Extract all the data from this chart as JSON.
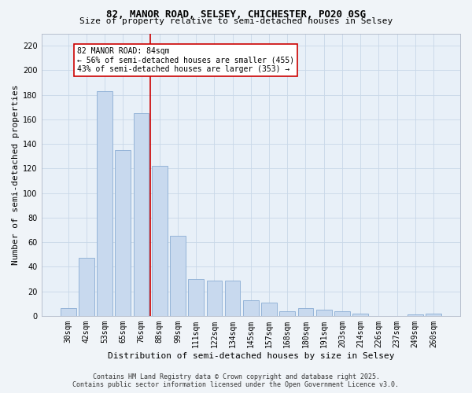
{
  "title1": "82, MANOR ROAD, SELSEY, CHICHESTER, PO20 0SG",
  "title2": "Size of property relative to semi-detached houses in Selsey",
  "xlabel": "Distribution of semi-detached houses by size in Selsey",
  "ylabel": "Number of semi-detached properties",
  "categories": [
    "30sqm",
    "42sqm",
    "53sqm",
    "65sqm",
    "76sqm",
    "88sqm",
    "99sqm",
    "111sqm",
    "122sqm",
    "134sqm",
    "145sqm",
    "157sqm",
    "168sqm",
    "180sqm",
    "191sqm",
    "203sqm",
    "214sqm",
    "226sqm",
    "237sqm",
    "249sqm",
    "260sqm"
  ],
  "values": [
    6,
    47,
    183,
    135,
    165,
    122,
    65,
    30,
    29,
    29,
    13,
    11,
    4,
    6,
    5,
    4,
    2,
    0,
    0,
    1,
    2
  ],
  "bar_color": "#c8d9ee",
  "bar_edge_color": "#8aadd4",
  "bar_linewidth": 0.6,
  "vline_index": 4.5,
  "vline_color": "#cc0000",
  "annotation_text": "82 MANOR ROAD: 84sqm\n← 56% of semi-detached houses are smaller (455)\n43% of semi-detached houses are larger (353) →",
  "annotation_box_color": "#cc0000",
  "ylim": [
    0,
    230
  ],
  "yticks": [
    0,
    20,
    40,
    60,
    80,
    100,
    120,
    140,
    160,
    180,
    200,
    220
  ],
  "grid_color": "#c8d8e8",
  "plot_bg_color": "#e8f0f8",
  "fig_bg_color": "#f0f4f8",
  "footer1": "Contains HM Land Registry data © Crown copyright and database right 2025.",
  "footer2": "Contains public sector information licensed under the Open Government Licence v3.0.",
  "title1_fontsize": 9,
  "title2_fontsize": 8,
  "tick_fontsize": 7,
  "ylabel_fontsize": 8,
  "xlabel_fontsize": 8,
  "footer_fontsize": 6,
  "annot_fontsize": 7
}
